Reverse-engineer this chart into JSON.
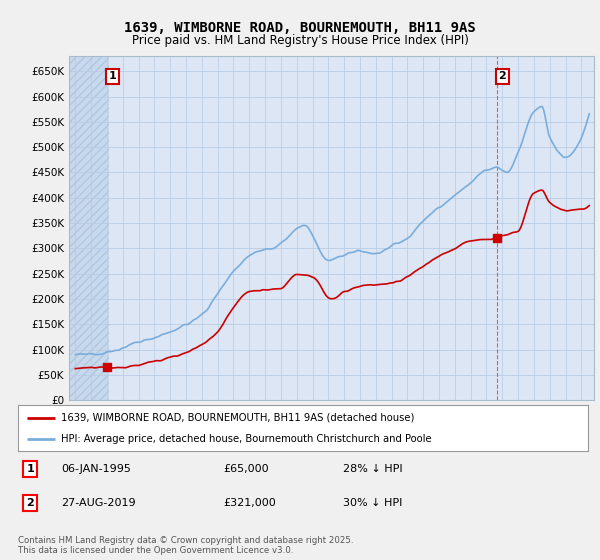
{
  "title": "1639, WIMBORNE ROAD, BOURNEMOUTH, BH11 9AS",
  "subtitle": "Price paid vs. HM Land Registry's House Price Index (HPI)",
  "ylim": [
    0,
    680000
  ],
  "yticks": [
    0,
    50000,
    100000,
    150000,
    200000,
    250000,
    300000,
    350000,
    400000,
    450000,
    500000,
    550000,
    600000,
    650000
  ],
  "ytick_labels": [
    "£0",
    "£50K",
    "£100K",
    "£150K",
    "£200K",
    "£250K",
    "£300K",
    "£350K",
    "£400K",
    "£450K",
    "£500K",
    "£550K",
    "£600K",
    "£650K"
  ],
  "xlim_start": 1992.6,
  "xlim_end": 2025.8,
  "background_color": "#f0f0f0",
  "plot_bg_color": "#dce6f5",
  "hatch_color": "#c8d8ed",
  "grid_color": "#b8cce4",
  "hpi_color": "#7aaddc",
  "price_color": "#cc0000",
  "marker1_year": 1995.02,
  "marker1_price": 65000,
  "marker2_year": 2019.65,
  "marker2_price": 321000,
  "legend_entry1": "1639, WIMBORNE ROAD, BOURNEMOUTH, BH11 9AS (detached house)",
  "legend_entry2": "HPI: Average price, detached house, Bournemouth Christchurch and Poole",
  "footer_text": "Contains HM Land Registry data © Crown copyright and database right 2025.\nThis data is licensed under the Open Government Licence v3.0.",
  "annotation1_date": "06-JAN-1995",
  "annotation1_price": "£65,000",
  "annotation1_hpi": "28% ↓ HPI",
  "annotation2_date": "27-AUG-2019",
  "annotation2_price": "£321,000",
  "annotation2_hpi": "30% ↓ HPI"
}
